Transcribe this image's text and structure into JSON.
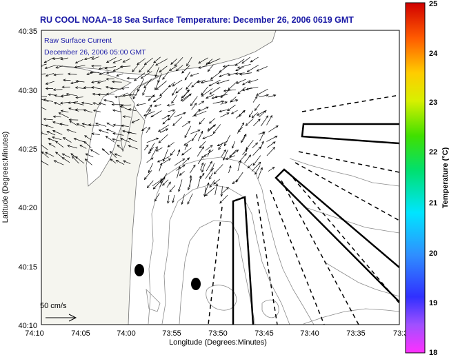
{
  "title": "RU COOL  NOAA−18  Sea Surface Temperature:  December 26, 2006 0619 GMT",
  "legend": {
    "line1": "Raw Surface Current",
    "line2": "December 26, 2006 05:00 GMT"
  },
  "axes": {
    "xlabel": "Longitude (Degrees:Minutes)",
    "ylabel": "Latitude (Degrees:Minutes)",
    "x_ticks": [
      "74:10",
      "74:05",
      "74:00",
      "73:55",
      "73:50",
      "73:45",
      "73:40",
      "73:35",
      "73:3"
    ],
    "y_ticks": [
      "40:35",
      "40:30",
      "40:25",
      "40:20",
      "40:15",
      "40:10"
    ]
  },
  "scale": {
    "label": "50 cm/s"
  },
  "colorbar": {
    "label": "Temperature (°C)",
    "ticks": [
      "25",
      "24",
      "23",
      "22",
      "21",
      "20",
      "19",
      "18"
    ],
    "min": 18,
    "max": 25
  },
  "colors": {
    "title": "#1a1aa6",
    "land": "#f4f4ee",
    "contour": "#8a8a8a",
    "vector": "#000000"
  }
}
